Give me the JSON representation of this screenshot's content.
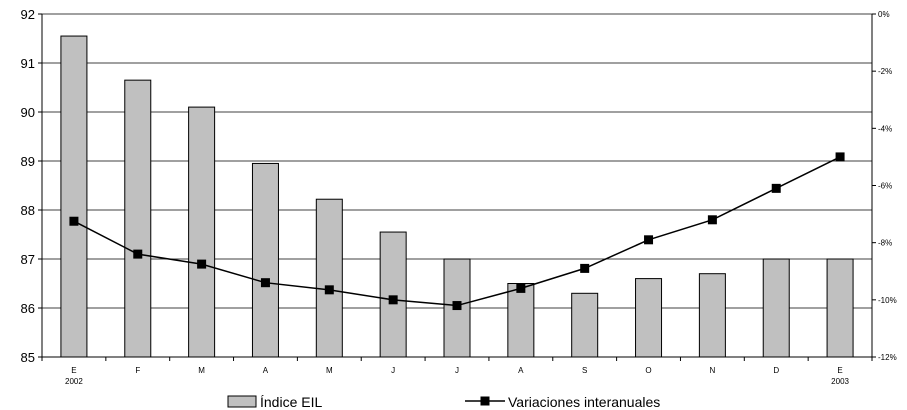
{
  "chart_data": {
    "type": "bar",
    "categories": [
      "E",
      "F",
      "M",
      "A",
      "M",
      "J",
      "J",
      "A",
      "S",
      "O",
      "N",
      "D",
      "E"
    ],
    "category_sublabels": [
      "2002",
      "",
      "",
      "",
      "",
      "",
      "",
      "",
      "",
      "",
      "",
      "",
      "2003"
    ],
    "series": [
      {
        "name": "Índice EIL",
        "type": "bar",
        "axis": "left",
        "color": "#c0c0c0",
        "values": [
          91.55,
          90.65,
          90.1,
          88.95,
          88.22,
          87.55,
          87.0,
          86.5,
          86.3,
          86.6,
          86.7,
          87.0,
          87.0
        ]
      },
      {
        "name": "Variaciones interanuales",
        "type": "line",
        "axis": "right",
        "color": "#000000",
        "unit": "%",
        "values": [
          -7.25,
          -8.4,
          -8.75,
          -9.4,
          -9.65,
          -10.0,
          -10.2,
          -9.6,
          -8.9,
          -7.9,
          -7.2,
          -6.1,
          -5.0
        ]
      }
    ],
    "y_left": {
      "min": 85,
      "max": 92,
      "ticks": [
        85,
        86,
        87,
        88,
        89,
        90,
        91,
        92
      ]
    },
    "y_right": {
      "min": -12,
      "max": 0,
      "ticks": [
        0,
        -2,
        -4,
        -6,
        -8,
        -10,
        -12
      ],
      "tick_labels": [
        "0%",
        "-2%",
        "-4%",
        "-6%",
        "-8%",
        "-10%",
        "-12%"
      ]
    },
    "grid": true,
    "legend_position": "bottom"
  }
}
